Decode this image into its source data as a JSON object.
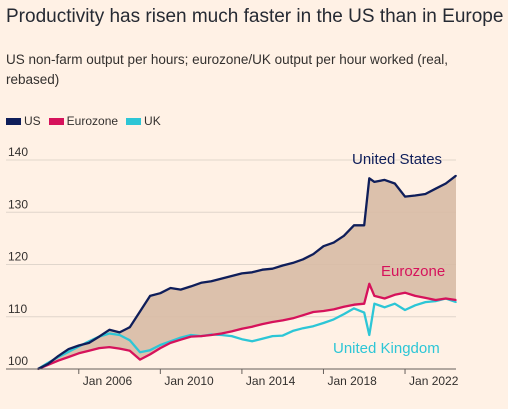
{
  "title": "Productivity has risen much faster in the US than in Europe",
  "subtitle": "US non-farm output per hours; eurozone/UK output per hour worked (real, rebased)",
  "colors": {
    "US": "#0f1e5a",
    "Eurozone": "#d6125b",
    "UK": "#2dc6d6",
    "fill": "#d8bba5",
    "background": "#fff1e5",
    "grid": "#e0d6cc"
  },
  "chart_data": {
    "type": "line",
    "title": "Productivity has risen much faster in the US than in Europe",
    "subtitle": "US non-farm output per hours; eurozone/UK output per hour worked (real, rebased)",
    "xlabel": "",
    "ylabel": "",
    "ylim": [
      100,
      140
    ],
    "xlim": [
      2004.0,
      2024.5
    ],
    "yticks": [
      100,
      110,
      120,
      130,
      140
    ],
    "xticks": [
      {
        "label": "Jan 2006",
        "x": 2006
      },
      {
        "label": "Jan 2010",
        "x": 2010
      },
      {
        "label": "Jan 2014",
        "x": 2014
      },
      {
        "label": "Jan 2018",
        "x": 2018
      },
      {
        "label": "Jan 2022",
        "x": 2022
      }
    ],
    "grid": true,
    "legend_position": "top-left",
    "shaded_area_between": [
      "US",
      "Eurozone"
    ],
    "annotations": [
      {
        "text": "United States",
        "series": "US"
      },
      {
        "text": "Eurozone",
        "series": "Eurozone"
      },
      {
        "text": "United Kingdom",
        "series": "UK"
      }
    ],
    "series": [
      {
        "name": "US",
        "x": [
          2004.0,
          2004.5,
          2005.0,
          2005.5,
          2006.0,
          2006.5,
          2007.0,
          2007.5,
          2008.0,
          2008.5,
          2009.0,
          2009.5,
          2010.0,
          2010.5,
          2011.0,
          2011.5,
          2012.0,
          2012.5,
          2013.0,
          2013.5,
          2014.0,
          2014.5,
          2015.0,
          2015.5,
          2016.0,
          2016.5,
          2017.0,
          2017.5,
          2018.0,
          2018.5,
          2019.0,
          2019.5,
          2020.0,
          2020.25,
          2020.5,
          2021.0,
          2021.5,
          2022.0,
          2022.5,
          2023.0,
          2023.5,
          2024.0,
          2024.5
        ],
        "values": [
          100,
          101,
          102.5,
          103.8,
          104.5,
          105,
          106.2,
          107.5,
          107,
          108,
          111,
          114,
          114.5,
          115.5,
          115.2,
          115.8,
          116.5,
          116.8,
          117.3,
          117.8,
          118.3,
          118.5,
          119,
          119.2,
          119.8,
          120.3,
          121,
          122,
          123.5,
          124.2,
          125.5,
          127.5,
          127.5,
          136.5,
          135.8,
          136.2,
          135.5,
          133,
          133.2,
          133.5,
          134.5,
          135.5,
          137
        ]
      },
      {
        "name": "Eurozone",
        "x": [
          2004.0,
          2004.5,
          2005.0,
          2005.5,
          2006.0,
          2006.5,
          2007.0,
          2007.5,
          2008.0,
          2008.5,
          2009.0,
          2009.5,
          2010.0,
          2010.5,
          2011.0,
          2011.5,
          2012.0,
          2012.5,
          2013.0,
          2013.5,
          2014.0,
          2014.5,
          2015.0,
          2015.5,
          2016.0,
          2016.5,
          2017.0,
          2017.5,
          2018.0,
          2018.5,
          2019.0,
          2019.5,
          2020.0,
          2020.25,
          2020.5,
          2021.0,
          2021.5,
          2022.0,
          2022.5,
          2023.0,
          2023.5,
          2024.0,
          2024.5
        ],
        "values": [
          100,
          100.8,
          101.6,
          102.3,
          103,
          103.5,
          104,
          104.2,
          103.9,
          103.5,
          101.8,
          102.8,
          104,
          105,
          105.6,
          106.2,
          106.3,
          106.5,
          106.8,
          107.2,
          107.7,
          108.1,
          108.6,
          109,
          109.3,
          109.7,
          110.3,
          110.9,
          111.1,
          111.4,
          111.9,
          112.3,
          112.5,
          116.3,
          114,
          113.5,
          114.2,
          114.6,
          114,
          113.6,
          113.2,
          113.5,
          113.2
        ]
      },
      {
        "name": "UK",
        "x": [
          2004.0,
          2004.5,
          2005.0,
          2005.5,
          2006.0,
          2006.5,
          2007.0,
          2007.5,
          2008.0,
          2008.5,
          2009.0,
          2009.5,
          2010.0,
          2010.5,
          2011.0,
          2011.5,
          2012.0,
          2012.5,
          2013.0,
          2013.5,
          2014.0,
          2014.5,
          2015.0,
          2015.5,
          2016.0,
          2016.5,
          2017.0,
          2017.5,
          2018.0,
          2018.5,
          2019.0,
          2019.5,
          2020.0,
          2020.25,
          2020.5,
          2021.0,
          2021.5,
          2022.0,
          2022.5,
          2023.0,
          2023.5,
          2024.0,
          2024.5
        ],
        "values": [
          100,
          101.2,
          102.3,
          103.3,
          104.3,
          105.3,
          106.2,
          106.8,
          106.5,
          105.5,
          103.2,
          103.6,
          104.6,
          105.3,
          106,
          106.5,
          106.3,
          106.6,
          106.5,
          106.3,
          105.7,
          105.3,
          105.8,
          106.3,
          106.4,
          107.3,
          107.8,
          108.2,
          108.8,
          109.5,
          110.5,
          111.6,
          110.8,
          106.5,
          112.5,
          111.8,
          112.5,
          111.3,
          112.2,
          112.8,
          113,
          113.5,
          112.8
        ]
      }
    ]
  }
}
